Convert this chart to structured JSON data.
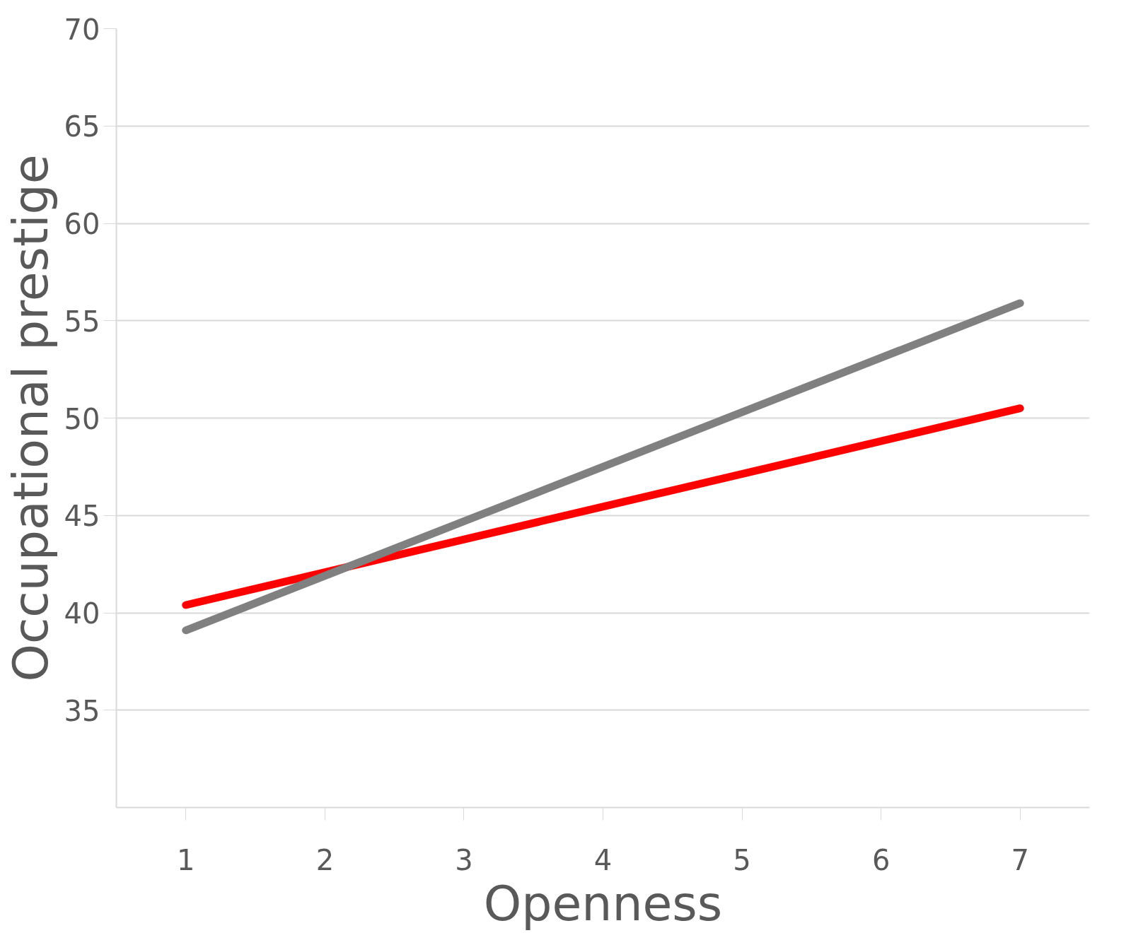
{
  "chart_data": {
    "type": "line",
    "xlabel": "Openness",
    "ylabel": "Occupational prestige",
    "x": [
      1,
      7
    ],
    "series": [
      {
        "color": "#ff0000",
        "values": [
          40.4,
          50.5
        ]
      },
      {
        "color": "#808080",
        "values": [
          39.1,
          55.9
        ]
      }
    ],
    "xlim": [
      0.5,
      7.5
    ],
    "xticks": [
      1,
      2,
      3,
      4,
      5,
      6,
      7
    ],
    "ylim": [
      30,
      70
    ],
    "yticks": [
      35,
      40,
      45,
      50,
      55,
      60,
      65,
      70
    ],
    "grid": "y",
    "line_style": "solid",
    "marker": "none"
  }
}
